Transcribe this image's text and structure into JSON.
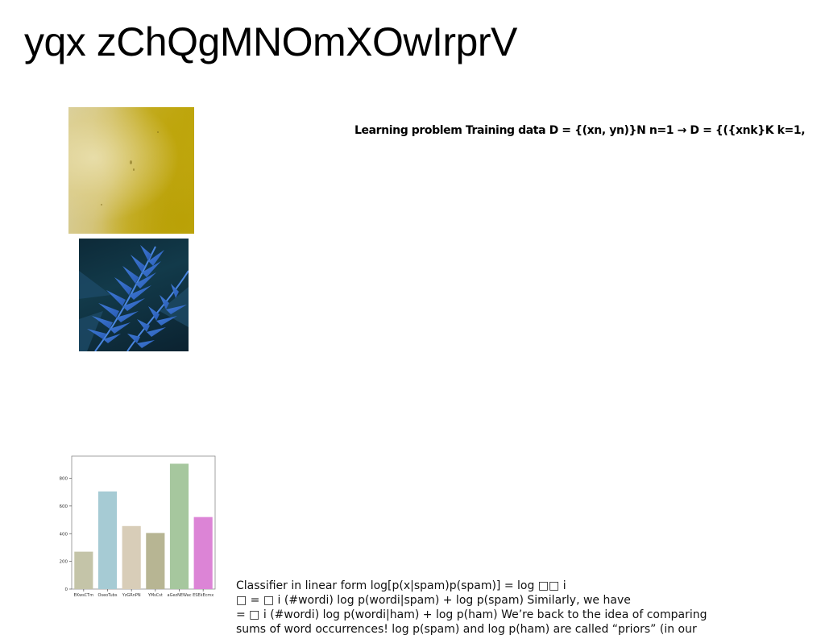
{
  "title": "yqx zChQgMNOmXOwIrprV",
  "right_text": "Learning problem Training data D = {(xn, yn)}N n=1 → D = {({xnk}K k=1,",
  "bottom_text": {
    "lines": [
      "Classifier in linear form log[p(x|spam)p(spam)] = log □□ i",
      "□ = □ i (#wordi) log p(wordi|spam) + log p(spam) Similarly, we have",
      "= □ i (#wordi) log p(wordi|ham) + log p(ham) We’re back to the idea of comparing",
      "sums of word occurrences! log p(spam) and log p(ham) are called “priors” (in our"
    ]
  },
  "images": {
    "wall_icon": "yellow-wall-photo",
    "fern_icon": "blue-fern-photo"
  },
  "chart_data": {
    "type": "bar",
    "categories": [
      "EKwsCTm",
      "OseoTubs",
      "YzGRnPN",
      "YMsCst",
      "aGezNEWac",
      "ESEkEcmx"
    ],
    "values": [
      270,
      705,
      455,
      405,
      905,
      520
    ],
    "colors": [
      "#c4c4a8",
      "#a6cbd4",
      "#d8cdb8",
      "#b7b593",
      "#a6c79e",
      "#dc84d6"
    ],
    "title": "",
    "xlabel": "",
    "ylabel": "",
    "ylim": [
      0,
      960
    ],
    "yticks": [
      0,
      200,
      400,
      600,
      800
    ],
    "grid": false
  }
}
